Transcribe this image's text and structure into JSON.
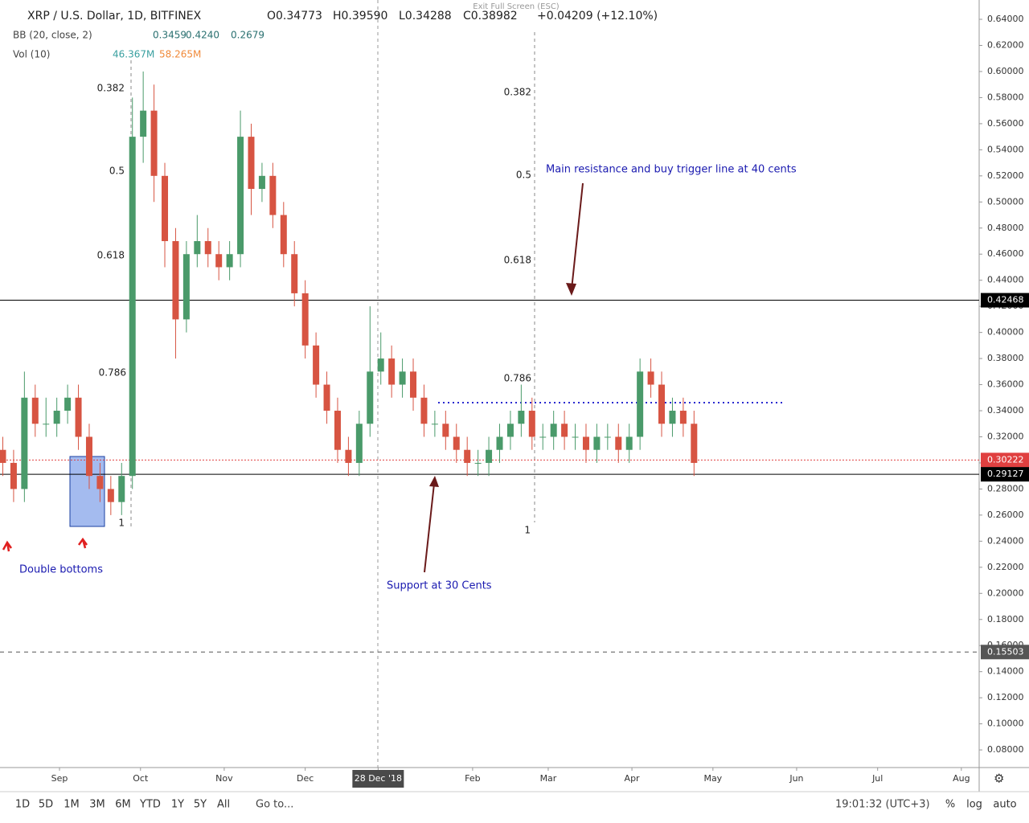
{
  "header": {
    "symbol": "XRP / U.S. Dollar, 1D, BITFINEX",
    "open": "O0.34773",
    "high": "H0.39590",
    "low": "L0.34288",
    "close": "C0.38982",
    "change": "+0.04209 (+12.10%)",
    "exit": "Exit Full Screen (ESC)",
    "bb": "BB (20, close, 2)",
    "bb_values": [
      "0.3459",
      "0.4240",
      "0.2679"
    ],
    "vol": "Vol (10)",
    "vol_values": [
      "46.367M",
      "58.265M"
    ]
  },
  "toolbar": {
    "ranges": [
      "1D",
      "5D",
      "1M",
      "3M",
      "6M",
      "YTD",
      "1Y",
      "5Y",
      "All"
    ],
    "goto": "Go to...",
    "time": "19:01:32 (UTC+3)",
    "options": [
      "%",
      "log",
      "auto"
    ]
  },
  "chart_data": {
    "type": "candlestick",
    "up_color": "#4a9a6a",
    "down_color": "#d75442",
    "xlim": [
      8.96,
      371.6
    ],
    "xticks": [
      {
        "value": 31,
        "label": "Sep"
      },
      {
        "value": 61,
        "label": "Oct"
      },
      {
        "value": 92,
        "label": "Nov"
      },
      {
        "value": 122,
        "label": "Dec"
      },
      {
        "value": 149,
        "label": "28 Dec '18"
      },
      {
        "value": 184,
        "label": "Feb"
      },
      {
        "value": 212,
        "label": "Mar"
      },
      {
        "value": 243,
        "label": "Apr"
      },
      {
        "value": 273,
        "label": "May"
      },
      {
        "value": 304,
        "label": "Jun"
      },
      {
        "value": 334,
        "label": "Jul"
      },
      {
        "value": 365,
        "label": "Aug"
      }
    ],
    "ylim": [
      0.0665,
      0.6548
    ],
    "yticks": [
      {
        "value": 0.64,
        "label": "0.64000"
      },
      {
        "value": 0.62,
        "label": "0.62000"
      },
      {
        "value": 0.6,
        "label": "0.60000"
      },
      {
        "value": 0.58,
        "label": "0.58000"
      },
      {
        "value": 0.56,
        "label": "0.56000"
      },
      {
        "value": 0.54,
        "label": "0.54000"
      },
      {
        "value": 0.52,
        "label": "0.52000"
      },
      {
        "value": 0.5,
        "label": "0.50000"
      },
      {
        "value": 0.48,
        "label": "0.48000"
      },
      {
        "value": 0.46,
        "label": "0.46000"
      },
      {
        "value": 0.44,
        "label": "0.44000"
      },
      {
        "value": 0.42,
        "label": "0.42000"
      },
      {
        "value": 0.4,
        "label": "0.40000"
      },
      {
        "value": 0.38,
        "label": "0.38000"
      },
      {
        "value": 0.36,
        "label": "0.36000"
      },
      {
        "value": 0.34,
        "label": "0.34000"
      },
      {
        "value": 0.32,
        "label": "0.32000"
      },
      {
        "value": 0.3,
        "label": "0.30000"
      },
      {
        "value": 0.28,
        "label": "0.28000"
      },
      {
        "value": 0.26,
        "label": "0.26000"
      },
      {
        "value": 0.24,
        "label": "0.24000"
      },
      {
        "value": 0.22,
        "label": "0.22000"
      },
      {
        "value": 0.2,
        "label": "0.20000"
      },
      {
        "value": 0.18,
        "label": "0.18000"
      },
      {
        "value": 0.16,
        "label": "0.16000"
      },
      {
        "value": 0.14,
        "label": "0.14000"
      },
      {
        "value": 0.12,
        "label": "0.12000"
      },
      {
        "value": 0.1,
        "label": "0.10000"
      },
      {
        "value": 0.08,
        "label": "0.08000"
      }
    ],
    "price_lines": [
      {
        "value": 0.42468,
        "color": "#000000",
        "style": "solid"
      },
      {
        "value": 0.30222,
        "color": "#e04040",
        "style": "dotted"
      },
      {
        "value": 0.29127,
        "color": "#000000",
        "style": "solid"
      },
      {
        "value": 0.15503,
        "color": "#555555",
        "style": "dashed"
      }
    ],
    "fib_levels": [
      "0.382",
      "0.5",
      "0.618",
      "0.786",
      "1"
    ],
    "annotations": [
      "Main resistance and buy trigger line at 40 cents",
      "Double bottoms",
      "Support at 30 Cents"
    ],
    "x": [
      10,
      14,
      18,
      22,
      26,
      30,
      34,
      38,
      42,
      46,
      50,
      54,
      58,
      62,
      66,
      70,
      74,
      78,
      82,
      86,
      90,
      94,
      98,
      102,
      106,
      110,
      114,
      118,
      122,
      126,
      130,
      134,
      138,
      142,
      146,
      150,
      154,
      158,
      162,
      166,
      170,
      174,
      178,
      182,
      186,
      190,
      194,
      198,
      202,
      206,
      210,
      214,
      218,
      222,
      226,
      230,
      234,
      238,
      242,
      246,
      250,
      254,
      258,
      262,
      266
    ],
    "open": [
      0.31,
      0.3,
      0.28,
      0.35,
      0.33,
      0.33,
      0.34,
      0.35,
      0.32,
      0.29,
      0.28,
      0.27,
      0.29,
      0.55,
      0.57,
      0.52,
      0.47,
      0.41,
      0.46,
      0.47,
      0.46,
      0.45,
      0.46,
      0.55,
      0.51,
      0.52,
      0.49,
      0.46,
      0.43,
      0.39,
      0.36,
      0.34,
      0.31,
      0.3,
      0.33,
      0.37,
      0.38,
      0.36,
      0.37,
      0.35,
      0.33,
      0.33,
      0.32,
      0.31,
      0.3,
      0.3,
      0.31,
      0.32,
      0.33,
      0.34,
      0.32,
      0.32,
      0.33,
      0.32,
      0.32,
      0.31,
      0.32,
      0.32,
      0.31,
      0.32,
      0.37,
      0.36,
      0.33,
      0.34,
      0.33
    ],
    "high": [
      0.32,
      0.31,
      0.37,
      0.36,
      0.35,
      0.35,
      0.36,
      0.36,
      0.33,
      0.3,
      0.29,
      0.3,
      0.58,
      0.6,
      0.59,
      0.53,
      0.48,
      0.47,
      0.49,
      0.48,
      0.47,
      0.47,
      0.57,
      0.56,
      0.53,
      0.53,
      0.5,
      0.47,
      0.44,
      0.4,
      0.37,
      0.35,
      0.32,
      0.34,
      0.42,
      0.4,
      0.39,
      0.38,
      0.38,
      0.36,
      0.34,
      0.34,
      0.33,
      0.32,
      0.31,
      0.32,
      0.33,
      0.34,
      0.36,
      0.35,
      0.33,
      0.34,
      0.34,
      0.33,
      0.33,
      0.33,
      0.33,
      0.33,
      0.33,
      0.38,
      0.38,
      0.37,
      0.35,
      0.35,
      0.34
    ],
    "low": [
      0.29,
      0.27,
      0.27,
      0.32,
      0.32,
      0.32,
      0.33,
      0.31,
      0.28,
      0.27,
      0.26,
      0.26,
      0.28,
      0.53,
      0.5,
      0.45,
      0.38,
      0.4,
      0.45,
      0.45,
      0.44,
      0.44,
      0.45,
      0.49,
      0.5,
      0.48,
      0.45,
      0.42,
      0.38,
      0.35,
      0.33,
      0.3,
      0.29,
      0.29,
      0.32,
      0.36,
      0.35,
      0.35,
      0.34,
      0.32,
      0.32,
      0.31,
      0.3,
      0.29,
      0.29,
      0.29,
      0.3,
      0.31,
      0.32,
      0.31,
      0.31,
      0.31,
      0.31,
      0.31,
      0.3,
      0.3,
      0.31,
      0.3,
      0.3,
      0.31,
      0.35,
      0.32,
      0.32,
      0.32,
      0.29
    ],
    "close": [
      0.3,
      0.28,
      0.35,
      0.33,
      0.33,
      0.34,
      0.35,
      0.32,
      0.29,
      0.28,
      0.27,
      0.29,
      0.55,
      0.57,
      0.52,
      0.47,
      0.41,
      0.46,
      0.47,
      0.46,
      0.45,
      0.46,
      0.55,
      0.51,
      0.52,
      0.49,
      0.46,
      0.43,
      0.39,
      0.36,
      0.34,
      0.31,
      0.3,
      0.33,
      0.37,
      0.38,
      0.36,
      0.37,
      0.35,
      0.33,
      0.33,
      0.32,
      0.31,
      0.3,
      0.3,
      0.31,
      0.32,
      0.33,
      0.34,
      0.32,
      0.32,
      0.33,
      0.32,
      0.32,
      0.31,
      0.32,
      0.32,
      0.31,
      0.32,
      0.37,
      0.36,
      0.33,
      0.34,
      0.33,
      0.3
    ]
  }
}
